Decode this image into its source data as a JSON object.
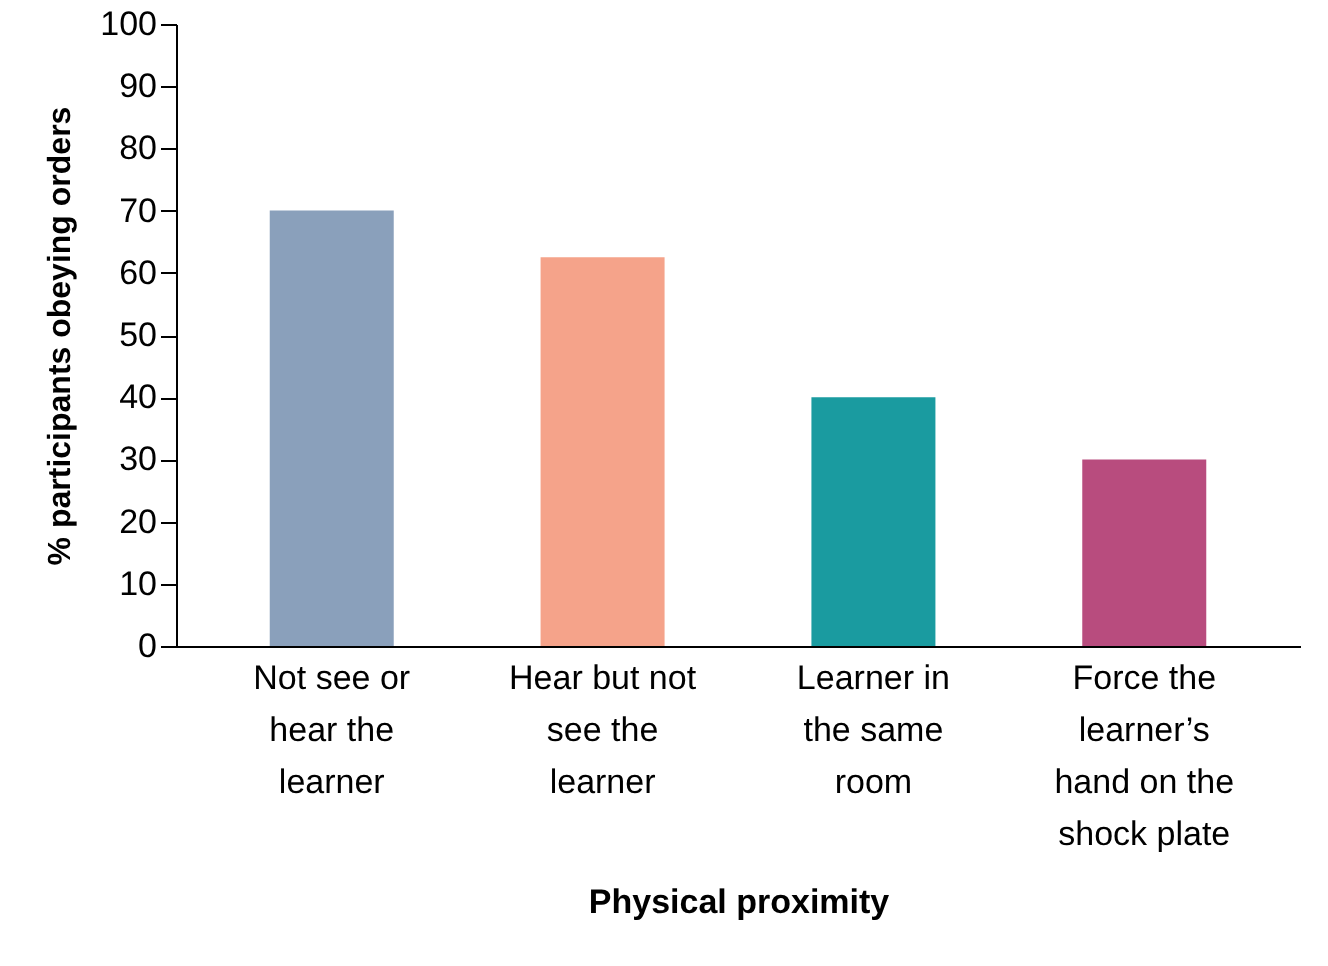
{
  "chart_data": {
    "type": "bar",
    "xlabel": "Physical proximity",
    "ylabel": "% participants obeying orders",
    "categories": [
      "Not see or hear the learner",
      "Hear but not see the learner",
      "Learner in the same room",
      "Force the learner’s hand on the shock plate"
    ],
    "values": [
      70,
      62.5,
      40,
      30
    ],
    "colors": [
      "#8aa0bb",
      "#f5a38a",
      "#1a9ba0",
      "#b84c7e"
    ],
    "ylim": [
      0,
      100
    ],
    "yticks": [
      0,
      10,
      20,
      30,
      40,
      50,
      60,
      70,
      80,
      90,
      100
    ]
  }
}
